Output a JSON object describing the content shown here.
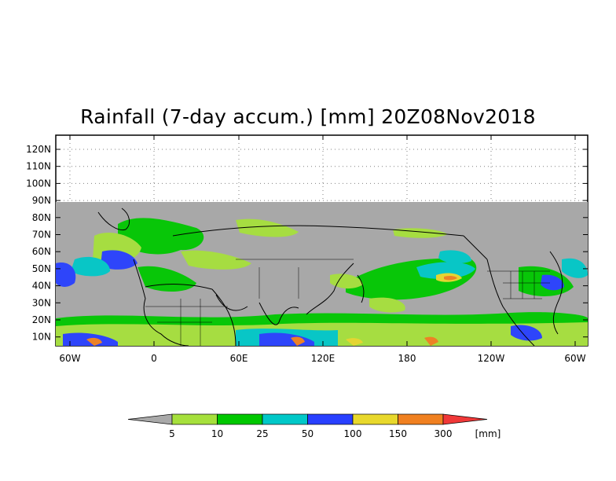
{
  "title": "Rainfall (7-day accum.) [mm] 20Z08Nov2018",
  "lat_labels": [
    "120N",
    "110N",
    "100N",
    "90N",
    "80N",
    "70N",
    "60N",
    "50N",
    "40N",
    "30N",
    "20N",
    "10N"
  ],
  "lon_labels": [
    "60W",
    "0",
    "60E",
    "120E",
    "180",
    "120W",
    "60W"
  ],
  "colorbar": {
    "unit": "[mm]",
    "labels": [
      "5",
      "10",
      "25",
      "50",
      "100",
      "150",
      "300"
    ],
    "colors": [
      "#a9a9a9",
      "#a6e03c",
      "#00c800",
      "#00c8c8",
      "#2840ff",
      "#e8d82c",
      "#f08020",
      "#f03838"
    ]
  },
  "colors": {
    "land_gray": "#a8a8a8",
    "coast": "#000000",
    "grid": "#808080"
  }
}
